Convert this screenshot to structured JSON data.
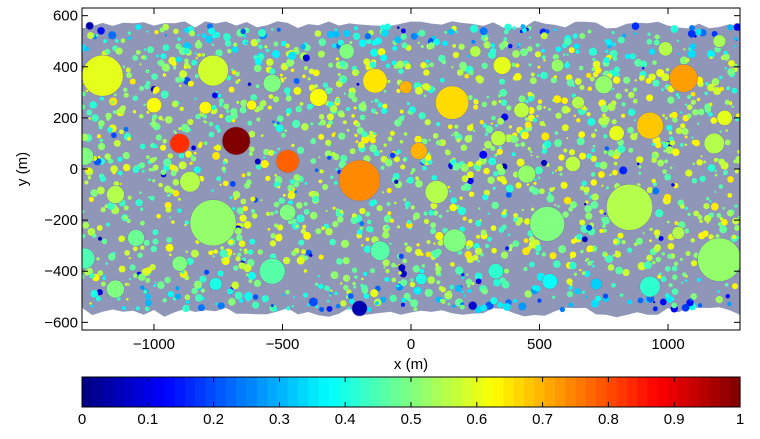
{
  "chart_data": {
    "type": "scatter",
    "subtype": "packed-circles-colored",
    "xlabel": "x (m)",
    "ylabel": "y (m)",
    "xlim": [
      -1280,
      1280
    ],
    "ylim": [
      -630,
      630
    ],
    "xticks": [
      -1000,
      -500,
      0,
      500,
      1000
    ],
    "xtick_labels": [
      "−1000",
      "−500",
      "0",
      "500",
      "1000"
    ],
    "yticks": [
      600,
      400,
      200,
      0,
      -200,
      -400,
      -600
    ],
    "ytick_labels": [
      "600",
      "400",
      "200",
      "0",
      "−200",
      "−400",
      "−600"
    ],
    "grid": false,
    "colormap": "jet",
    "colorbar": {
      "range": [
        0,
        1
      ],
      "ticks": [
        0,
        0.1,
        0.2,
        0.3,
        0.4,
        0.5,
        0.6,
        0.7,
        0.8,
        0.9,
        1
      ],
      "tick_labels": [
        "0",
        "0.1",
        "0.2",
        "0.3",
        "0.4",
        "0.5",
        "0.6",
        "0.7",
        "0.8",
        "0.9",
        "1"
      ],
      "steps": 64,
      "placement": "bottom"
    },
    "background_color": "#8f96b8",
    "circles": [
      {
        "x": -680,
        "y": 110,
        "r": 55,
        "value": 1.0
      },
      {
        "x": -900,
        "y": 100,
        "r": 38,
        "value": 0.83
      },
      {
        "x": -480,
        "y": 30,
        "r": 45,
        "value": 0.78
      },
      {
        "x": -200,
        "y": -45,
        "r": 80,
        "value": 0.74
      },
      {
        "x": -770,
        "y": 385,
        "r": 60,
        "value": 0.58
      },
      {
        "x": -1200,
        "y": 365,
        "r": 80,
        "value": 0.6
      },
      {
        "x": -770,
        "y": -210,
        "r": 90,
        "value": 0.52
      },
      {
        "x": -540,
        "y": 335,
        "r": 35,
        "value": 0.5
      },
      {
        "x": -140,
        "y": 345,
        "r": 48,
        "value": 0.65
      },
      {
        "x": 160,
        "y": 260,
        "r": 65,
        "value": 0.66
      },
      {
        "x": 30,
        "y": 70,
        "r": 33,
        "value": 0.7
      },
      {
        "x": 355,
        "y": 405,
        "r": 35,
        "value": 0.6
      },
      {
        "x": 1060,
        "y": 355,
        "r": 55,
        "value": 0.72
      },
      {
        "x": 930,
        "y": 170,
        "r": 52,
        "value": 0.68
      },
      {
        "x": 850,
        "y": -150,
        "r": 90,
        "value": 0.55
      },
      {
        "x": 530,
        "y": -215,
        "r": 68,
        "value": 0.5
      },
      {
        "x": 1200,
        "y": -355,
        "r": 85,
        "value": 0.52
      },
      {
        "x": 170,
        "y": -280,
        "r": 45,
        "value": 0.5
      },
      {
        "x": -540,
        "y": -400,
        "r": 50,
        "value": 0.46
      },
      {
        "x": -200,
        "y": -545,
        "r": 30,
        "value": 0.05
      },
      {
        "x": -1250,
        "y": 560,
        "r": 15,
        "value": 0.05
      },
      {
        "x": 1270,
        "y": 555,
        "r": 15,
        "value": 0.1
      },
      {
        "x": 240,
        "y": -535,
        "r": 17,
        "value": 0.08
      },
      {
        "x": -1150,
        "y": -470,
        "r": 35,
        "value": 0.5
      },
      {
        "x": 930,
        "y": -460,
        "r": 40,
        "value": 0.42
      },
      {
        "x": -360,
        "y": 280,
        "r": 35,
        "value": 0.62
      },
      {
        "x": -860,
        "y": -50,
        "r": 40,
        "value": 0.55
      },
      {
        "x": 570,
        "y": 405,
        "r": 25,
        "value": 0.52
      },
      {
        "x": 450,
        "y": -20,
        "r": 35,
        "value": 0.52
      },
      {
        "x": 630,
        "y": 20,
        "r": 30,
        "value": 0.56
      },
      {
        "x": 100,
        "y": -90,
        "r": 45,
        "value": 0.55
      },
      {
        "x": 1180,
        "y": 100,
        "r": 40,
        "value": 0.55
      },
      {
        "x": -1000,
        "y": 250,
        "r": 30,
        "value": 0.62
      },
      {
        "x": -250,
        "y": 460,
        "r": 30,
        "value": 0.5
      },
      {
        "x": 430,
        "y": 230,
        "r": 30,
        "value": 0.56
      },
      {
        "x": 750,
        "y": 330,
        "r": 35,
        "value": 0.52
      },
      {
        "x": -480,
        "y": -170,
        "r": 32,
        "value": 0.5
      },
      {
        "x": -120,
        "y": -320,
        "r": 38,
        "value": 0.46
      },
      {
        "x": 330,
        "y": -400,
        "r": 30,
        "value": 0.42
      },
      {
        "x": 540,
        "y": -440,
        "r": 30,
        "value": 0.38
      },
      {
        "x": -760,
        "y": -450,
        "r": 25,
        "value": 0.4
      },
      {
        "x": -1270,
        "y": 50,
        "r": 35,
        "value": 0.5
      },
      {
        "x": -1270,
        "y": -350,
        "r": 40,
        "value": 0.45
      },
      {
        "x": 720,
        "y": -450,
        "r": 22,
        "value": 0.33
      },
      {
        "x": 340,
        "y": 120,
        "r": 30,
        "value": 0.56
      },
      {
        "x": 800,
        "y": 140,
        "r": 30,
        "value": 0.6
      },
      {
        "x": -1070,
        "y": -270,
        "r": 33,
        "value": 0.48
      },
      {
        "x": -1150,
        "y": -100,
        "r": 35,
        "value": 0.55
      },
      {
        "x": -620,
        "y": 250,
        "r": 20,
        "value": 0.63
      },
      {
        "x": -800,
        "y": 240,
        "r": 25,
        "value": 0.63
      },
      {
        "x": 990,
        "y": 470,
        "r": 28,
        "value": 0.55
      },
      {
        "x": 650,
        "y": 260,
        "r": 25,
        "value": 0.55
      },
      {
        "x": -900,
        "y": -370,
        "r": 30,
        "value": 0.5
      },
      {
        "x": 1040,
        "y": -250,
        "r": 25,
        "value": 0.55
      },
      {
        "x": -20,
        "y": 320,
        "r": 25,
        "value": 0.7
      },
      {
        "x": 250,
        "y": 460,
        "r": 22,
        "value": 0.55
      },
      {
        "x": 1200,
        "y": 500,
        "r": 25,
        "value": 0.54
      },
      {
        "x": 1220,
        "y": 200,
        "r": 30,
        "value": 0.6
      },
      {
        "x": 40,
        "y": -430,
        "r": 22,
        "value": 0.4
      },
      {
        "x": -380,
        "y": -520,
        "r": 18,
        "value": 0.2
      }
    ],
    "filler_seed": 7,
    "filler_count": 2200
  }
}
